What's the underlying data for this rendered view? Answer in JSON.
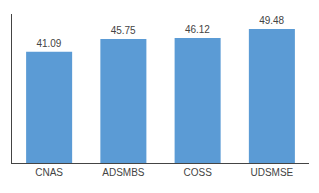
{
  "chart_data": {
    "type": "bar",
    "categories": [
      "CNAS",
      "ADSMBS",
      "COSS",
      "UDSMSE"
    ],
    "values": [
      41.09,
      45.75,
      46.12,
      49.48
    ],
    "color": "#5b9bd5",
    "ylim": [
      0,
      55
    ],
    "grid": false,
    "data_labels": true,
    "tick_labels": "x"
  }
}
